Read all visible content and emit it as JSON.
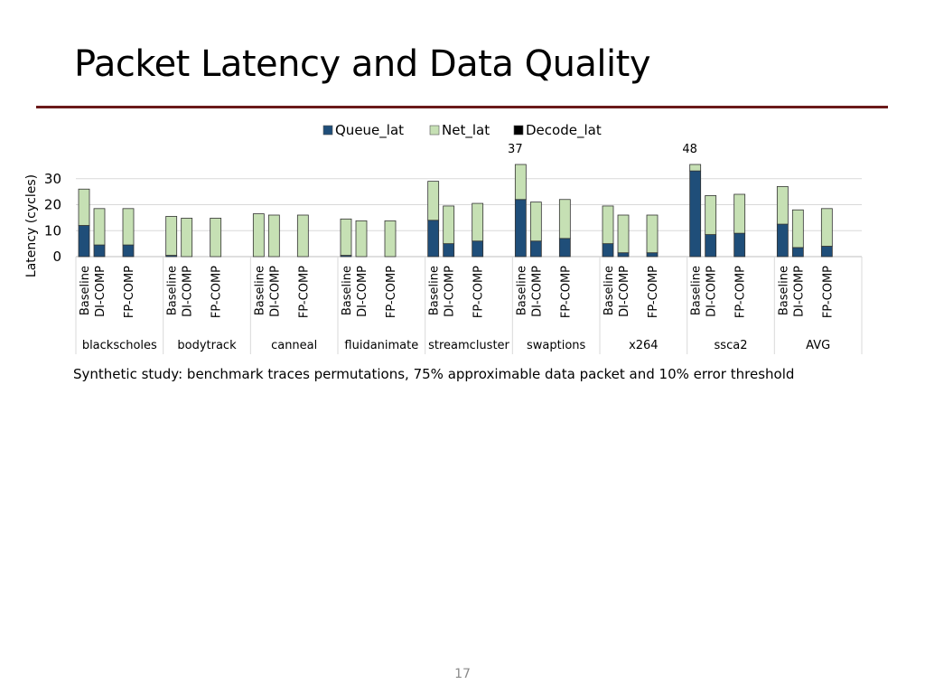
{
  "slide": {
    "title": "Packet Latency and Data Quality",
    "caption": "Synthetic study: benchmark traces permutations, 75% approximable data packet and 10% error threshold",
    "page_number": "17"
  },
  "colors": {
    "title_rule": "#6b1a1a",
    "queue": "#1f4e79",
    "net": "#c6e0b4",
    "decode": "#000000"
  },
  "chart_data": {
    "type": "bar",
    "stacked": true,
    "ylabel": "Latency (cycles)",
    "ylim": [
      0,
      35
    ],
    "y_ticks": [
      "0",
      "10",
      "20",
      "30"
    ],
    "grid": true,
    "legend_position": "top-center",
    "group_labels": [
      "blackscholes",
      "bodytrack",
      "canneal",
      "fluidanimate",
      "streamcluster",
      "swaptions",
      "x264",
      "ssca2",
      "AVG"
    ],
    "bar_labels": [
      "Baseline",
      "DI-COMP",
      "FP-COMP"
    ],
    "series": [
      {
        "name": "Queue_lat",
        "values": [
          [
            12.0,
            4.5,
            4.5
          ],
          [
            0.5,
            0,
            0
          ],
          [
            0,
            0,
            0
          ],
          [
            0.5,
            0,
            0
          ],
          [
            14.0,
            5.0,
            6.0
          ],
          [
            22.0,
            6.0,
            7.0
          ],
          [
            5.0,
            1.5,
            1.5
          ],
          [
            33.0,
            8.5,
            9.0
          ],
          [
            12.5,
            3.5,
            4.0
          ]
        ]
      },
      {
        "name": "Net_lat",
        "values": [
          [
            14.0,
            14.0,
            14.0
          ],
          [
            15.0,
            14.8,
            14.8
          ],
          [
            16.5,
            16.0,
            16.0
          ],
          [
            14.0,
            13.8,
            13.8
          ],
          [
            15.0,
            14.5,
            14.5
          ],
          [
            15.0,
            15.0,
            15.0
          ],
          [
            14.5,
            14.5,
            14.5
          ],
          [
            15.0,
            15.0,
            15.0
          ],
          [
            14.5,
            14.5,
            14.5
          ]
        ]
      },
      {
        "name": "Decode_lat",
        "values": [
          [
            0,
            0,
            0
          ],
          [
            0,
            0,
            0
          ],
          [
            0,
            0,
            0
          ],
          [
            0,
            0,
            0
          ],
          [
            0,
            0,
            0
          ],
          [
            0,
            0,
            0
          ],
          [
            0,
            0,
            0
          ],
          [
            0,
            0,
            0
          ],
          [
            0,
            0,
            0
          ]
        ]
      }
    ],
    "true_totals": [
      [
        null,
        null,
        null
      ],
      [
        null,
        null,
        null
      ],
      [
        null,
        null,
        null
      ],
      [
        null,
        null,
        null
      ],
      [
        null,
        null,
        null
      ],
      [
        37,
        null,
        null
      ],
      [
        null,
        null,
        null
      ],
      [
        48,
        null,
        null
      ],
      [
        null,
        null,
        null
      ]
    ],
    "annotations": [
      {
        "group": "swaptions",
        "bar": "Baseline",
        "text": "37"
      },
      {
        "group": "ssca2",
        "bar": "Baseline",
        "text": "48"
      }
    ]
  }
}
